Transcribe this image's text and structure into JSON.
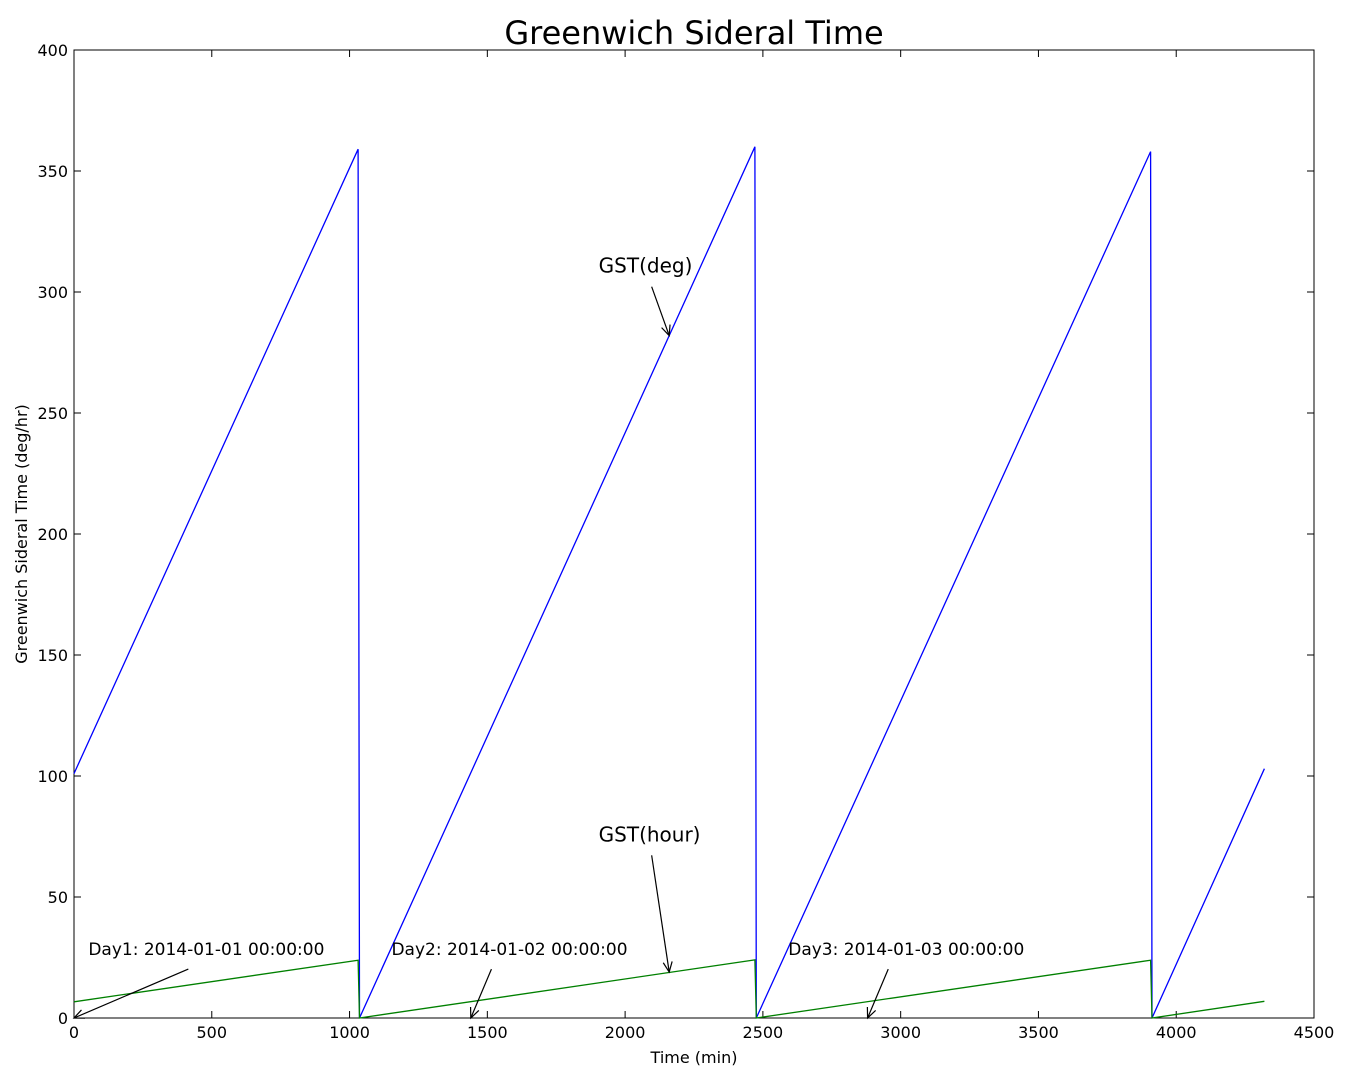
{
  "chart_data": {
    "type": "line",
    "title": "Greenwich Sideral Time",
    "xlabel": "Time (min)",
    "ylabel": "Greenwich Sideral Time (deg/hr)",
    "xlim": [
      0,
      4500
    ],
    "ylim": [
      0,
      400
    ],
    "xticks": [
      "0",
      "500",
      "1000",
      "1500",
      "2000",
      "2500",
      "3000",
      "3500",
      "4000",
      "4500"
    ],
    "yticks": [
      "0",
      "50",
      "100",
      "150",
      "200",
      "250",
      "300",
      "350",
      "400"
    ],
    "grid": false,
    "legend": "none",
    "series": [
      {
        "color": "#0000ff",
        "x": [
          0,
          1031,
          1036,
          2471,
          2476,
          3907,
          3912,
          4320
        ],
        "y": [
          101,
          359,
          0,
          360,
          0,
          358,
          0,
          103
        ]
      },
      {
        "color": "#008000",
        "x": [
          0,
          1031,
          1036,
          2471,
          2476,
          3907,
          3912,
          4320
        ],
        "y": [
          6.7,
          23.9,
          0,
          24.0,
          0,
          23.9,
          0,
          6.9
        ]
      }
    ],
    "annotations": [
      {
        "text": "GST(deg)",
        "text_pos": [
          1904,
          308
        ],
        "target": [
          2160,
          282
        ],
        "size": "large"
      },
      {
        "text": "GST(hour)",
        "text_pos": [
          1904,
          73
        ],
        "target": [
          2160,
          19
        ],
        "size": "large"
      },
      {
        "text": "Day1: 2014-01-01 00:00:00",
        "text_pos": [
          52,
          26
        ],
        "target": [
          0,
          0
        ],
        "size": "small"
      },
      {
        "text": "Day2: 2014-01-02 00:00:00",
        "text_pos": [
          1152,
          26
        ],
        "target": [
          1440,
          0
        ],
        "size": "small"
      },
      {
        "text": "Day3: 2014-01-03 00:00:00",
        "text_pos": [
          2592,
          26
        ],
        "target": [
          2880,
          0
        ],
        "size": "small"
      }
    ]
  }
}
